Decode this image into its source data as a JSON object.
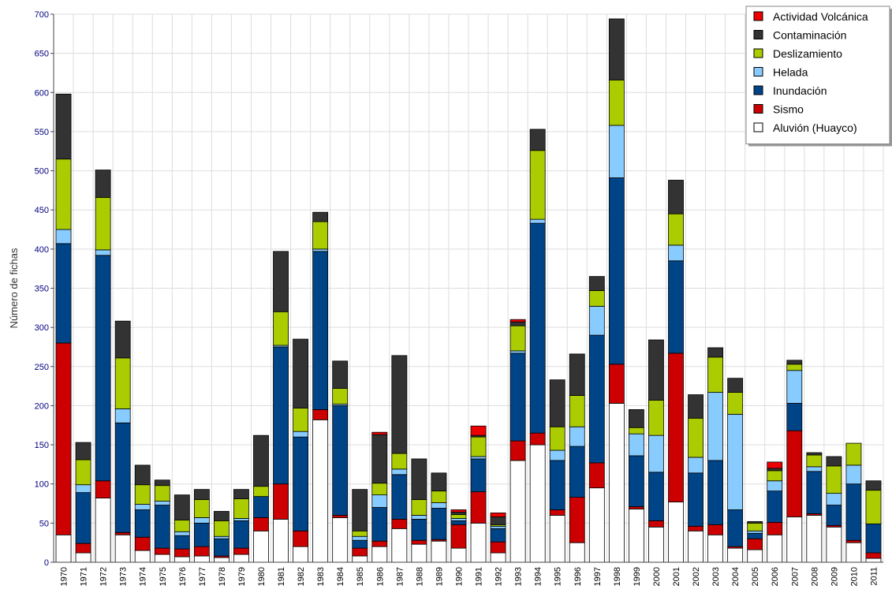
{
  "chart_data": {
    "type": "bar",
    "stacked": true,
    "ylabel": "Número de fichas",
    "xlabel": "",
    "ylim": [
      0,
      700
    ],
    "yticks": [
      0,
      50,
      100,
      150,
      200,
      250,
      300,
      350,
      400,
      450,
      500,
      550,
      600,
      650,
      700
    ],
    "grid": true,
    "legend_position": "top-right",
    "categories": [
      "1970",
      "1971",
      "1972",
      "1973",
      "1974",
      "1975",
      "1976",
      "1977",
      "1978",
      "1979",
      "1980",
      "1981",
      "1982",
      "1983",
      "1984",
      "1985",
      "1986",
      "1987",
      "1988",
      "1989",
      "1990",
      "1991",
      "1992",
      "1993",
      "1994",
      "1995",
      "1996",
      "1997",
      "1998",
      "1999",
      "2000",
      "2001",
      "2002",
      "2003",
      "2004",
      "2005",
      "2006",
      "2007",
      "2008",
      "2009",
      "2010",
      "2011"
    ],
    "series": [
      {
        "name": "Aluvión (Huayco)",
        "color": "#ffffff",
        "values": [
          35,
          12,
          82,
          35,
          15,
          10,
          7,
          8,
          6,
          10,
          40,
          55,
          20,
          182,
          57,
          8,
          20,
          43,
          23,
          27,
          18,
          50,
          12,
          130,
          150,
          60,
          25,
          95,
          203,
          68,
          45,
          77,
          40,
          35,
          18,
          16,
          35,
          58,
          60,
          45,
          25,
          5
        ]
      },
      {
        "name": "Sismo",
        "color": "#cc0000",
        "values": [
          245,
          12,
          22,
          3,
          17,
          8,
          10,
          12,
          2,
          8,
          17,
          45,
          20,
          13,
          3,
          10,
          7,
          12,
          5,
          2,
          30,
          40,
          14,
          25,
          15,
          7,
          58,
          32,
          50,
          3,
          8,
          190,
          6,
          13,
          2,
          14,
          16,
          110,
          2,
          2,
          3,
          7
        ]
      },
      {
        "name": "Inundación",
        "color": "#004488",
        "values": [
          127,
          65,
          288,
          140,
          35,
          55,
          17,
          30,
          22,
          35,
          27,
          175,
          120,
          202,
          140,
          10,
          43,
          57,
          27,
          40,
          5,
          42,
          17,
          112,
          268,
          63,
          65,
          163,
          238,
          65,
          62,
          118,
          68,
          82,
          47,
          7,
          40,
          35,
          54,
          26,
          72,
          37
        ]
      },
      {
        "name": "Helada",
        "color": "#88ccff",
        "values": [
          18,
          10,
          7,
          18,
          7,
          5,
          5,
          7,
          3,
          3,
          0,
          2,
          7,
          3,
          2,
          5,
          16,
          7,
          5,
          7,
          3,
          3,
          3,
          3,
          5,
          13,
          25,
          37,
          67,
          28,
          47,
          20,
          20,
          87,
          122,
          3,
          13,
          42,
          6,
          15,
          24,
          0
        ]
      },
      {
        "name": "Deslizamiento",
        "color": "#aacc00",
        "values": [
          90,
          32,
          67,
          65,
          25,
          20,
          15,
          23,
          20,
          25,
          13,
          43,
          30,
          35,
          20,
          7,
          15,
          20,
          20,
          15,
          5,
          25,
          2,
          32,
          88,
          30,
          40,
          20,
          58,
          8,
          45,
          40,
          50,
          45,
          28,
          10,
          13,
          8,
          15,
          35,
          28,
          43
        ]
      },
      {
        "name": "Contaminación",
        "color": "#333333",
        "values": [
          83,
          22,
          35,
          47,
          25,
          7,
          32,
          13,
          12,
          12,
          65,
          77,
          88,
          12,
          35,
          53,
          62,
          125,
          52,
          23,
          3,
          2,
          10,
          5,
          27,
          60,
          53,
          18,
          78,
          23,
          77,
          43,
          30,
          12,
          18,
          2,
          3,
          5,
          3,
          12,
          0,
          12
        ]
      },
      {
        "name": "Actividad Volcánica",
        "color": "#ee0000",
        "values": [
          0,
          0,
          0,
          0,
          0,
          0,
          0,
          0,
          0,
          0,
          0,
          0,
          0,
          0,
          0,
          0,
          3,
          0,
          0,
          0,
          3,
          12,
          5,
          3,
          0,
          0,
          0,
          0,
          0,
          0,
          0,
          0,
          0,
          0,
          0,
          0,
          8,
          0,
          0,
          0,
          0,
          0
        ]
      }
    ],
    "legend_order": [
      "Actividad Volcánica",
      "Contaminación",
      "Deslizamiento",
      "Helada",
      "Inundación",
      "Sismo",
      "Aluvión (Huayco)"
    ]
  }
}
